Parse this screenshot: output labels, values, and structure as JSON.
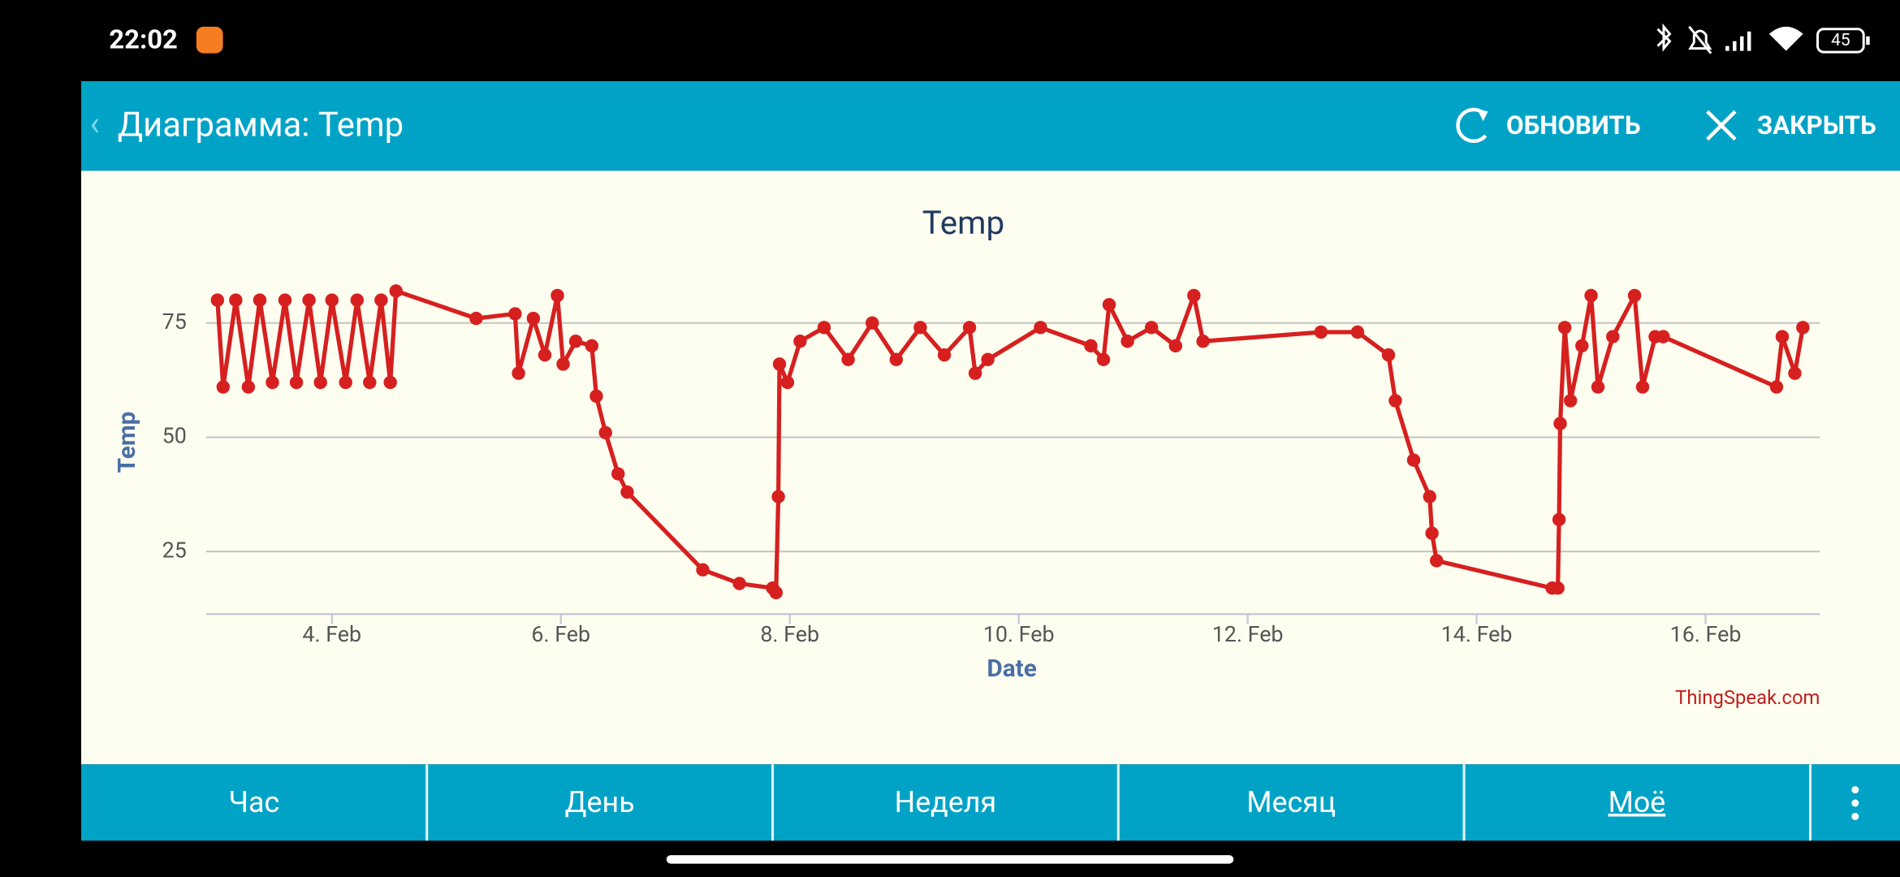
{
  "status": {
    "time": "22:02",
    "battery": "45"
  },
  "appbar": {
    "title": "Диаграмма: Temp",
    "refresh": "ОБНОВИТЬ",
    "close": "ЗАКРЫТЬ"
  },
  "chart_data": {
    "type": "line",
    "title": "Temp",
    "x_label": "Date",
    "y_label": "Temp",
    "credit": "ThingSpeak.com",
    "xlim": [
      2.9,
      17.0
    ],
    "ylim": [
      11.3,
      85.5
    ],
    "xticks": [
      {
        "value": 4,
        "label": "4. Feb"
      },
      {
        "value": 6,
        "label": "6. Feb"
      },
      {
        "value": 8,
        "label": "8. Feb"
      },
      {
        "value": 10,
        "label": "10. Feb"
      },
      {
        "value": 12,
        "label": "12. Feb"
      },
      {
        "value": 14,
        "label": "14. Feb"
      },
      {
        "value": 16,
        "label": "16. Feb"
      }
    ],
    "yticks": [
      25,
      50,
      75
    ],
    "grid": true,
    "series": [
      {
        "name": "Temp",
        "color": "#d62020",
        "x": [
          3.0,
          3.05,
          3.16,
          3.27,
          3.37,
          3.48,
          3.59,
          3.69,
          3.8,
          3.9,
          4.0,
          4.12,
          4.22,
          4.33,
          4.43,
          4.51,
          4.56,
          5.26,
          5.6,
          5.63,
          5.76,
          5.86,
          5.97,
          6.02,
          6.13,
          6.27,
          6.31,
          6.39,
          6.5,
          6.58,
          7.24,
          7.56,
          7.85,
          7.88,
          7.9,
          7.91,
          7.98,
          8.09,
          8.3,
          8.51,
          8.72,
          8.93,
          9.14,
          9.35,
          9.57,
          9.62,
          9.73,
          10.19,
          10.63,
          10.74,
          10.79,
          10.95,
          11.16,
          11.37,
          11.53,
          11.61,
          12.64,
          12.96,
          13.23,
          13.29,
          13.45,
          13.59,
          13.61,
          13.65,
          14.66,
          14.71,
          14.72,
          14.73,
          14.77,
          14.82,
          14.92,
          15.0,
          15.06,
          15.19,
          15.38,
          15.45,
          15.56,
          15.63,
          16.62,
          16.67,
          16.78,
          16.85
        ],
        "values": [
          80,
          61,
          80,
          61,
          80,
          62,
          80,
          62,
          80,
          62,
          80,
          62,
          80,
          62,
          80,
          62,
          82,
          76,
          77,
          64,
          76,
          68,
          81,
          66,
          71,
          70,
          59,
          51,
          42,
          38,
          21,
          18,
          17,
          16,
          37,
          66,
          62,
          71,
          74,
          67,
          75,
          67,
          74,
          68,
          74,
          64,
          67,
          74,
          70,
          67,
          79,
          71,
          74,
          70,
          81,
          71,
          73,
          73,
          68,
          58,
          45,
          37,
          29,
          23,
          17,
          17,
          32,
          53,
          74,
          58,
          70,
          81,
          61,
          72,
          81,
          61,
          72,
          72,
          61,
          72,
          64,
          74
        ]
      }
    ]
  },
  "tabs": [
    "Час",
    "День",
    "Неделя",
    "Месяц",
    "Моё"
  ]
}
